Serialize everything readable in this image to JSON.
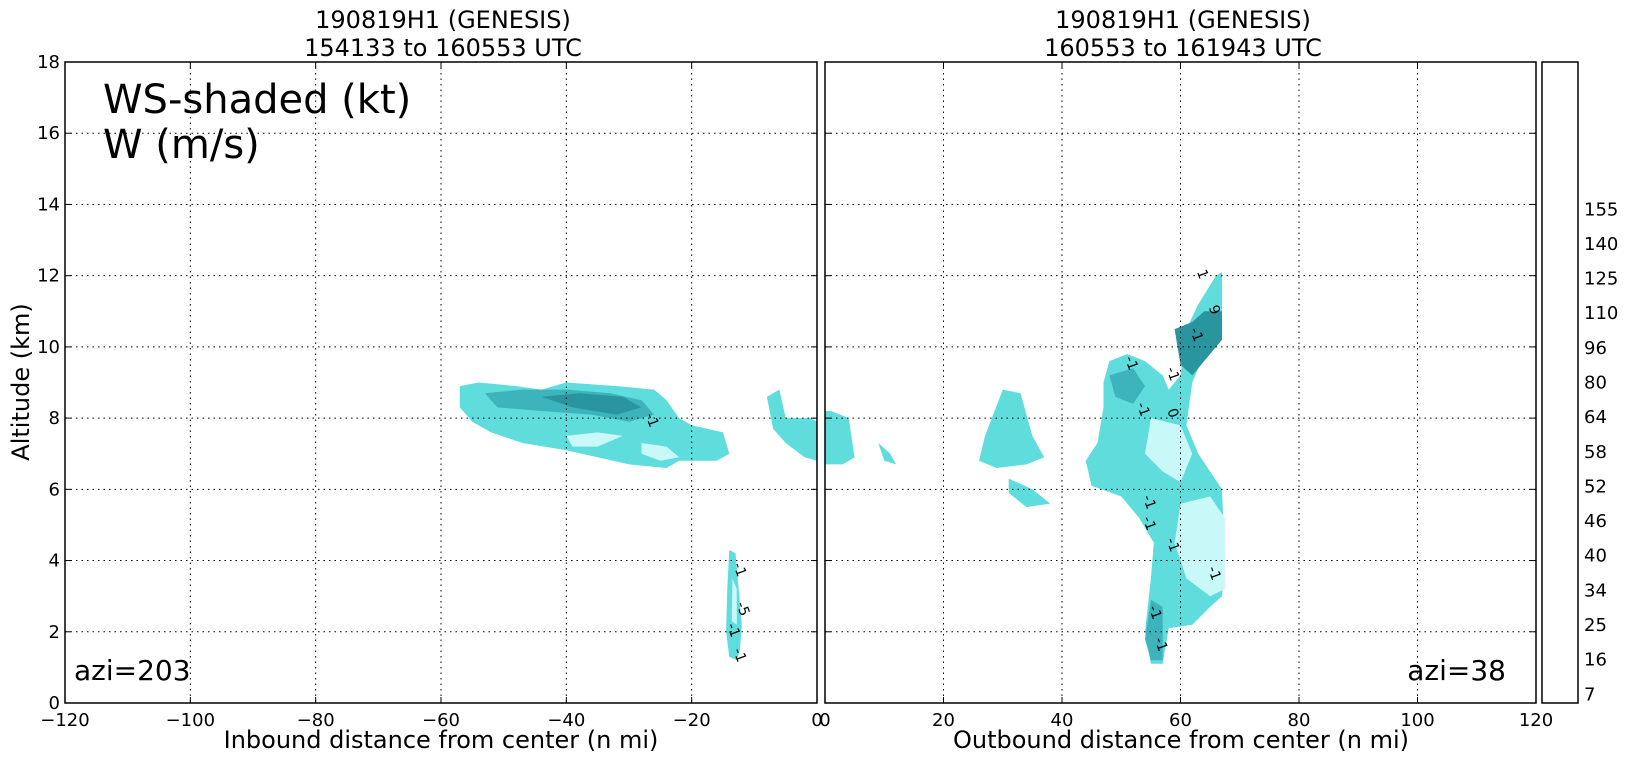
{
  "chart_data": [
    {
      "type": "heatmap",
      "title_line1": "190819H1 (GENESIS)",
      "title_line2": "154133 to 160553 UTC",
      "xlabel": "Inbound distance from center (n mi)",
      "ylabel": "Altitude (km)",
      "xlim": [
        -120,
        0
      ],
      "ylim": [
        0,
        18
      ],
      "xticks": [
        -120,
        -100,
        -80,
        -60,
        -40,
        -20,
        0
      ],
      "xtick_labels": [
        "−120",
        "−100",
        "−80",
        "−60",
        "−40",
        "−20",
        "0"
      ],
      "yticks": [
        0,
        2,
        4,
        6,
        8,
        10,
        12,
        14,
        16,
        18
      ],
      "ytick_labels": [
        "0",
        "2",
        "4",
        "6",
        "8",
        "10",
        "12",
        "14",
        "16",
        "18"
      ],
      "grid": true,
      "annotation_lines": [
        "WS-shaded (kt)",
        "W (m/s)"
      ],
      "azimuth_label": "azi=203",
      "contour_labels": [
        {
          "text": "-1",
          "x": -27,
          "y": 7.9
        },
        {
          "text": "-1",
          "x": -13,
          "y": 3.7
        },
        {
          "text": "-5",
          "x": -12.5,
          "y": 2.6
        },
        {
          "text": "-1",
          "x": -14,
          "y": 2.0
        },
        {
          "text": "-1",
          "x": -13,
          "y": 1.3
        }
      ],
      "shaded_regions": [
        {
          "level": "13",
          "points": [
            [
              -57,
              8.9
            ],
            [
              -54,
              9.0
            ],
            [
              -48,
              8.9
            ],
            [
              -44,
              8.8
            ],
            [
              -40,
              9.0
            ],
            [
              -32,
              8.9
            ],
            [
              -26,
              8.8
            ],
            [
              -24,
              8.5
            ],
            [
              -22,
              8.0
            ],
            [
              -20,
              7.8
            ],
            [
              -15,
              7.6
            ],
            [
              -14,
              7.0
            ],
            [
              -16,
              6.8
            ],
            [
              -22,
              6.8
            ],
            [
              -24,
              6.6
            ],
            [
              -30,
              6.7
            ],
            [
              -35,
              6.9
            ],
            [
              -40,
              7.1
            ],
            [
              -47,
              7.3
            ],
            [
              -52,
              7.6
            ],
            [
              -55,
              7.9
            ],
            [
              -57,
              8.3
            ]
          ]
        },
        {
          "level": "19",
          "points": [
            [
              -53,
              8.7
            ],
            [
              -47,
              8.8
            ],
            [
              -40,
              8.8
            ],
            [
              -33,
              8.7
            ],
            [
              -28,
              8.5
            ],
            [
              -26,
              8.1
            ],
            [
              -30,
              7.9
            ],
            [
              -36,
              8.1
            ],
            [
              -44,
              8.2
            ],
            [
              -51,
              8.3
            ]
          ]
        },
        {
          "level": "22",
          "points": [
            [
              -44,
              8.6
            ],
            [
              -38,
              8.7
            ],
            [
              -31,
              8.6
            ],
            [
              -28,
              8.3
            ],
            [
              -32,
              8.1
            ],
            [
              -39,
              8.3
            ]
          ]
        },
        {
          "level": "7",
          "points": [
            [
              -40,
              7.5
            ],
            [
              -35,
              7.6
            ],
            [
              -31,
              7.5
            ],
            [
              -35,
              7.2
            ],
            [
              -39,
              7.2
            ]
          ]
        },
        {
          "level": "7",
          "points": [
            [
              -28,
              7.3
            ],
            [
              -24,
              7.2
            ],
            [
              -22,
              6.9
            ],
            [
              -25,
              6.8
            ],
            [
              -28,
              7.0
            ]
          ]
        },
        {
          "level": "13",
          "points": [
            [
              -8,
              8.6
            ],
            [
              -6,
              8.8
            ],
            [
              -5,
              8.0
            ],
            [
              -1,
              8.0
            ],
            [
              0,
              7.9
            ],
            [
              0,
              6.8
            ],
            [
              -2,
              6.9
            ],
            [
              -5,
              7.3
            ],
            [
              -7,
              7.7
            ]
          ]
        },
        {
          "level": "13",
          "points": [
            [
              -14,
              4.3
            ],
            [
              -13,
              4.2
            ],
            [
              -12.5,
              3.2
            ],
            [
              -12,
              2.2
            ],
            [
              -12.3,
              1.5
            ],
            [
              -12.8,
              1.2
            ],
            [
              -14,
              1.3
            ],
            [
              -14.5,
              2.0
            ],
            [
              -14.3,
              3.3
            ]
          ]
        },
        {
          "level": "7",
          "points": [
            [
              -13.5,
              3.5
            ],
            [
              -12.8,
              3.2
            ],
            [
              -12.8,
              2.2
            ],
            [
              -13.6,
              2.3
            ]
          ]
        }
      ]
    },
    {
      "type": "heatmap",
      "title_line1": "190819H1 (GENESIS)",
      "title_line2": "160553 to 161943 UTC",
      "xlabel": "Outbound distance from center (n mi)",
      "ylabel": "",
      "xlim": [
        0,
        120
      ],
      "ylim": [
        0,
        18
      ],
      "xticks": [
        0,
        20,
        40,
        60,
        80,
        100,
        120
      ],
      "xtick_labels": [
        "0",
        "20",
        "40",
        "60",
        "80",
        "100",
        "120"
      ],
      "grid": true,
      "azimuth_label": "azi=38",
      "contour_labels": [
        {
          "text": "1",
          "x": 63,
          "y": 12.0
        },
        {
          "text": "-1",
          "x": 62,
          "y": 10.3
        },
        {
          "text": "9",
          "x": 65,
          "y": 11.0
        },
        {
          "text": "-1",
          "x": 51,
          "y": 9.5
        },
        {
          "text": "-1",
          "x": 58,
          "y": 9.2
        },
        {
          "text": "-1",
          "x": 53,
          "y": 8.2
        },
        {
          "text": "0",
          "x": 58,
          "y": 8.1
        },
        {
          "text": "-1",
          "x": 54,
          "y": 5.6
        },
        {
          "text": "-1",
          "x": 54,
          "y": 5.0
        },
        {
          "text": "-1",
          "x": 58,
          "y": 4.4
        },
        {
          "text": "-1",
          "x": 65,
          "y": 3.6
        },
        {
          "text": "-1",
          "x": 55,
          "y": 2.5
        },
        {
          "text": "-1",
          "x": 56,
          "y": 1.6
        }
      ],
      "shaded_regions": [
        {
          "level": "13",
          "points": [
            [
              1,
              8.2
            ],
            [
              4,
              8.0
            ],
            [
              5,
              6.9
            ],
            [
              3,
              6.7
            ],
            [
              0,
              6.7
            ],
            [
              0,
              8.2
            ]
          ]
        },
        {
          "level": "13",
          "points": [
            [
              9,
              7.3
            ],
            [
              11,
              7.0
            ],
            [
              12,
              6.7
            ],
            [
              10,
              6.8
            ]
          ]
        },
        {
          "level": "13",
          "points": [
            [
              30,
              8.8
            ],
            [
              33,
              8.7
            ],
            [
              35,
              7.5
            ],
            [
              37,
              6.9
            ],
            [
              34,
              6.7
            ],
            [
              29,
              6.6
            ],
            [
              26,
              6.8
            ],
            [
              27,
              7.5
            ]
          ]
        },
        {
          "level": "13",
          "points": [
            [
              31,
              6.3
            ],
            [
              35,
              6.0
            ],
            [
              38,
              5.6
            ],
            [
              34,
              5.5
            ],
            [
              31,
              5.9
            ]
          ]
        },
        {
          "level": "13",
          "points": [
            [
              48,
              9.6
            ],
            [
              51,
              9.8
            ],
            [
              54,
              9.6
            ],
            [
              57,
              9.2
            ],
            [
              58,
              8.8
            ],
            [
              60,
              9.2
            ],
            [
              61,
              10.5
            ],
            [
              63,
              11.2
            ],
            [
              66,
              12.0
            ],
            [
              67,
              12.1
            ],
            [
              67,
              10.2
            ],
            [
              64,
              9.8
            ],
            [
              62,
              9.0
            ],
            [
              61,
              7.8
            ],
            [
              63,
              7.0
            ],
            [
              65,
              6.5
            ],
            [
              67,
              6.0
            ],
            [
              67.5,
              4.0
            ],
            [
              67,
              3.0
            ],
            [
              65,
              2.7
            ],
            [
              62,
              2.2
            ],
            [
              58,
              2.1
            ],
            [
              57,
              1.1
            ],
            [
              55,
              1.1
            ],
            [
              54,
              2.0
            ],
            [
              55,
              3.5
            ],
            [
              55.5,
              4.5
            ],
            [
              53,
              5.2
            ],
            [
              50,
              5.8
            ],
            [
              45,
              6.1
            ],
            [
              44,
              6.8
            ],
            [
              46,
              7.3
            ],
            [
              47,
              8.3
            ],
            [
              47,
              9.0
            ]
          ]
        },
        {
          "level": "22",
          "points": [
            [
              59,
              10.5
            ],
            [
              62,
              10.7
            ],
            [
              64,
              11.0
            ],
            [
              67,
              11.0
            ],
            [
              67,
              10.2
            ],
            [
              65,
              9.8
            ],
            [
              62,
              9.2
            ],
            [
              60,
              9.5
            ]
          ]
        },
        {
          "level": "19",
          "points": [
            [
              48,
              9.2
            ],
            [
              52,
              9.4
            ],
            [
              54,
              8.9
            ],
            [
              52,
              8.4
            ],
            [
              49,
              8.6
            ]
          ]
        },
        {
          "level": "7",
          "points": [
            [
              55,
              8.0
            ],
            [
              60,
              7.8
            ],
            [
              62,
              7.0
            ],
            [
              60,
              6.2
            ],
            [
              57,
              6.5
            ],
            [
              54,
              7.0
            ]
          ]
        },
        {
          "level": "7",
          "points": [
            [
              60,
              5.6
            ],
            [
              65,
              5.8
            ],
            [
              67.5,
              5.2
            ],
            [
              67.5,
              3.2
            ],
            [
              65,
              3.0
            ],
            [
              61,
              3.5
            ],
            [
              59,
              4.5
            ]
          ]
        },
        {
          "level": "19",
          "points": [
            [
              55,
              2.9
            ],
            [
              57,
              2.7
            ],
            [
              57,
              1.2
            ],
            [
              55,
              1.2
            ],
            [
              54,
              1.8
            ]
          ]
        }
      ]
    }
  ],
  "colorbar": {
    "tick_labels": [
      "7",
      "16",
      "25",
      "34",
      "40",
      "46",
      "52",
      "58",
      "64",
      "80",
      "96",
      "110",
      "125",
      "140",
      "155"
    ],
    "tick_levels": [
      0,
      2,
      4,
      6,
      8,
      10,
      12,
      14,
      16,
      18,
      20,
      22,
      24,
      26,
      28
    ],
    "colors": [
      "#ffffff",
      "#b8f5f5",
      "#8ceeee",
      "#62e0e0",
      "#4ccccc",
      "#3eb8c0",
      "#2ea3ac",
      "#1f8f99",
      "#17818a",
      "#0a9a4a",
      "#30b830",
      "#6ccc3a",
      "#a6dc50",
      "#d7e25a",
      "#f0d050",
      "#f5a030",
      "#f57a20",
      "#f04a10",
      "#e82010",
      "#d00000",
      "#b00000",
      "#900000",
      "#7a0030",
      "#a010c0",
      "#c030e0",
      "#d060ee",
      "#e090f0",
      "#f0b8f4",
      "#fbd0ee",
      "#f8b0c8",
      "#f890a0",
      "#f87878",
      "#f06060",
      "#e04850",
      "#c83048",
      "#b02040",
      "#9a1038"
    ]
  },
  "level_colors": {
    "7": "#c8f8f8",
    "13": "#5fdcdc",
    "19": "#3db4bc",
    "22": "#28959f"
  }
}
